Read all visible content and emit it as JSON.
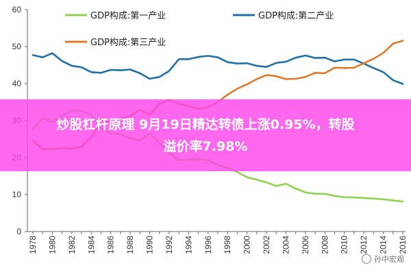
{
  "chart_data": {
    "type": "line",
    "title": "",
    "xlabel": "",
    "ylabel": "",
    "ylim": [
      0,
      60
    ],
    "yticks": [
      0,
      10,
      20,
      30,
      40,
      50,
      60
    ],
    "x_categories": [
      "1978",
      "1979",
      "1980",
      "1981",
      "1982",
      "1983",
      "1984",
      "1985",
      "1986",
      "1987",
      "1988",
      "1989",
      "1990",
      "1991",
      "1992",
      "1993",
      "1994",
      "1995",
      "1996",
      "1997",
      "1998",
      "1999",
      "2000",
      "2001",
      "2002",
      "2003",
      "2004",
      "2005",
      "2006",
      "2007",
      "2008",
      "2009",
      "2010",
      "2011",
      "2012",
      "2013",
      "2014",
      "2015",
      "2016"
    ],
    "x_tick_labels": [
      "1978",
      "1980",
      "1982",
      "1984",
      "1986",
      "1988",
      "1990",
      "1992",
      "1994",
      "1996",
      "1998",
      "2000",
      "2002",
      "2004",
      "2006",
      "2008",
      "2010",
      "2012",
      "2014",
      "2016"
    ],
    "legend_position": "top",
    "grid": false,
    "series": [
      {
        "name": "GDP构成:第一产业",
        "color": "#92d050",
        "values": [
          27.7,
          30.7,
          29.6,
          31.3,
          32.8,
          32.6,
          31.5,
          27.9,
          26.6,
          26.3,
          25.2,
          24.6,
          26.6,
          24.0,
          21.3,
          19.3,
          19.5,
          19.6,
          19.3,
          17.9,
          17.2,
          16.1,
          14.7,
          14.0,
          13.3,
          12.3,
          12.9,
          11.6,
          10.6,
          10.2,
          10.2,
          9.6,
          9.3,
          9.2,
          9.1,
          8.9,
          8.7,
          8.4,
          8.1
        ]
      },
      {
        "name": "GDP构成:第二产业",
        "color": "#1f6fa8",
        "values": [
          47.7,
          47.1,
          48.2,
          46.1,
          44.8,
          44.4,
          43.1,
          42.9,
          43.7,
          43.6,
          43.8,
          42.8,
          41.3,
          41.8,
          43.4,
          46.6,
          46.6,
          47.2,
          47.5,
          47.1,
          45.8,
          45.4,
          45.5,
          44.8,
          44.5,
          45.6,
          45.9,
          47.0,
          47.6,
          46.9,
          47.0,
          46.0,
          46.5,
          46.5,
          45.4,
          44.2,
          43.1,
          40.9,
          39.9
        ]
      },
      {
        "name": "GDP构成:第三产业",
        "color": "#e0782a",
        "values": [
          24.6,
          22.3,
          22.3,
          22.6,
          22.4,
          23.0,
          25.5,
          29.4,
          29.8,
          30.4,
          31.2,
          32.9,
          31.5,
          34.5,
          35.6,
          34.5,
          33.9,
          33.2,
          33.6,
          35.0,
          37.0,
          38.6,
          39.8,
          41.2,
          42.3,
          42.0,
          41.2,
          41.3,
          41.8,
          42.9,
          42.8,
          44.3,
          44.2,
          44.3,
          45.5,
          46.7,
          48.3,
          50.8,
          51.6
        ]
      }
    ]
  },
  "banner": {
    "line1": "炒股杠杆原理 9月19日精达转债上涨0.95%，转股",
    "line2": "溢价率7.98%"
  },
  "watermark": {
    "text": "孙中宏观"
  }
}
